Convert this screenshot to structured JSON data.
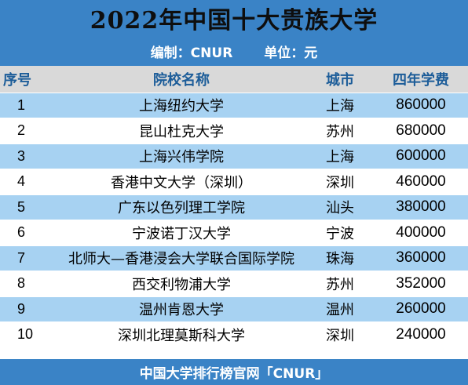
{
  "title": "2022年中国十大贵族大学",
  "subtitle": {
    "editor": "编制：CNUR",
    "unit": "单位：元"
  },
  "table": {
    "headers": {
      "rank": "序号",
      "name": "院校名称",
      "city": "城市",
      "fee": "四年学费"
    },
    "rows": [
      {
        "rank": "1",
        "name": "上海纽约大学",
        "city": "上海",
        "fee": "860000"
      },
      {
        "rank": "2",
        "name": "昆山杜克大学",
        "city": "苏州",
        "fee": "680000"
      },
      {
        "rank": "3",
        "name": "上海兴伟学院",
        "city": "上海",
        "fee": "600000"
      },
      {
        "rank": "4",
        "name": "香港中文大学（深圳）",
        "city": "深圳",
        "fee": "460000"
      },
      {
        "rank": "5",
        "name": "广东以色列理工学院",
        "city": "汕头",
        "fee": "380000"
      },
      {
        "rank": "6",
        "name": "宁波诺丁汉大学",
        "city": "宁波",
        "fee": "400000"
      },
      {
        "rank": "7",
        "name": "北师大—香港浸会大学联合国际学院",
        "city": "珠海",
        "fee": "360000"
      },
      {
        "rank": "8",
        "name": "西交利物浦大学",
        "city": "苏州",
        "fee": "352000"
      },
      {
        "rank": "9",
        "name": "温州肯恩大学",
        "city": "温州",
        "fee": "260000"
      },
      {
        "rank": "10",
        "name": "深圳北理莫斯科大学",
        "city": "深圳",
        "fee": "240000"
      }
    ]
  },
  "footer": "中国大学排行榜官网「CNUR」",
  "colors": {
    "header_blue": "#3a83c6",
    "row_blue": "#a7d2f2",
    "header_gray": "#d9d9d9",
    "header_text": "#1d5d99"
  }
}
